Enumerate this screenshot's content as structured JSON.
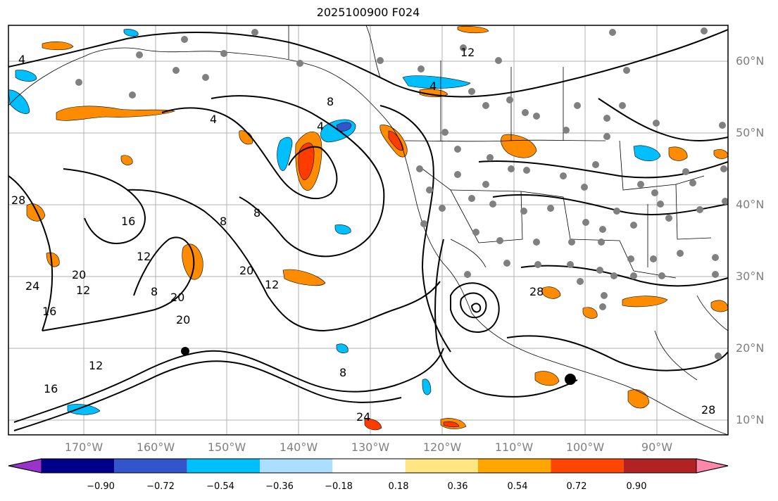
{
  "title": "2025100900 F024",
  "longitude_labels": [
    "170°W",
    "160°W",
    "150°W",
    "140°W",
    "130°W",
    "120°W",
    "110°W",
    "100°W",
    "90°W"
  ],
  "latitude_labels": [
    "60°N",
    "50°N",
    "40°N",
    "30°N",
    "20°N",
    "10°N"
  ],
  "contour_labels": [
    "4",
    "4",
    "4",
    "4",
    "8",
    "8",
    "8",
    "8",
    "8",
    "12",
    "12",
    "12",
    "12",
    "12",
    "16",
    "16",
    "16",
    "20",
    "20",
    "20",
    "20",
    "24",
    "24",
    "28",
    "28",
    "28"
  ],
  "colorbar": {
    "tick_labels": [
      "−0.90",
      "−0.72",
      "−0.54",
      "−0.36",
      "−0.18",
      "0.18",
      "0.36",
      "0.54",
      "0.72",
      "0.90"
    ],
    "colors": [
      "#9933cc",
      "#000088",
      "#3355cc",
      "#00bfff",
      "#aadfff",
      "#ffffff",
      "#ffe680",
      "#ffa500",
      "#ff4500",
      "#b22222",
      "#ff88aa"
    ]
  }
}
